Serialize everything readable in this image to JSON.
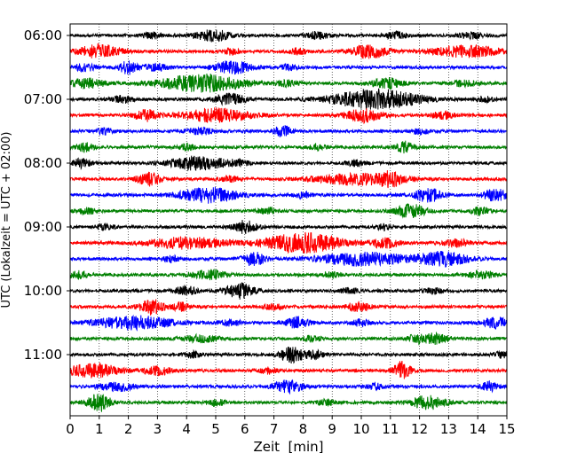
{
  "chart_data": {
    "type": "line",
    "title": "",
    "xlabel": "Zeit  [min]",
    "ylabel": "UTC (Lokalzeit = UTC + 02:00)",
    "xlim": [
      0,
      15
    ],
    "x_ticks": [
      "0",
      "1",
      "2",
      "3",
      "4",
      "5",
      "6",
      "7",
      "8",
      "9",
      "10",
      "11",
      "12",
      "13",
      "14",
      "15"
    ],
    "y_ticks": [
      "06:00",
      "07:00",
      "08:00",
      "09:00",
      "10:00",
      "11:00"
    ],
    "grid": "vertical-dotted",
    "trace_interval_minutes": 15,
    "trace_colors": [
      "#000000",
      "#ff0000",
      "#0000ff",
      "#008000"
    ],
    "series": [
      {
        "start": "06:00",
        "color": "#000000",
        "bursts": [
          [
            4.9,
            0.6,
            0.5
          ],
          [
            2.8,
            0.3,
            0.3
          ],
          [
            8.5,
            0.4,
            0.3
          ],
          [
            11.2,
            0.4,
            0.3
          ],
          [
            13.8,
            0.4,
            0.25
          ]
        ]
      },
      {
        "start": "06:15",
        "color": "#ff0000",
        "bursts": [
          [
            1.0,
            0.7,
            0.6
          ],
          [
            10.3,
            0.6,
            0.6
          ],
          [
            13.6,
            1.2,
            0.5
          ],
          [
            5.5,
            0.3,
            0.25
          ],
          [
            7.8,
            0.3,
            0.25
          ]
        ]
      },
      {
        "start": "06:30",
        "color": "#0000ff",
        "bursts": [
          [
            5.6,
            0.6,
            0.6
          ],
          [
            2.0,
            0.3,
            0.6
          ],
          [
            3.0,
            0.4,
            0.3
          ],
          [
            0.5,
            0.4,
            0.3
          ],
          [
            7.5,
            0.3,
            0.25
          ]
        ]
      },
      {
        "start": "06:45",
        "color": "#008000",
        "bursts": [
          [
            4.5,
            1.4,
            0.8
          ],
          [
            0.6,
            0.6,
            0.4
          ],
          [
            10.9,
            0.5,
            0.5
          ],
          [
            7.5,
            0.4,
            0.25
          ],
          [
            13.5,
            0.4,
            0.25
          ]
        ]
      },
      {
        "start": "07:00",
        "color": "#000000",
        "bursts": [
          [
            10.5,
            1.5,
            0.9
          ],
          [
            5.5,
            0.5,
            0.5
          ],
          [
            1.8,
            0.4,
            0.3
          ],
          [
            14.2,
            0.3,
            0.25
          ]
        ]
      },
      {
        "start": "07:15",
        "color": "#ff0000",
        "bursts": [
          [
            5.0,
            1.2,
            0.6
          ],
          [
            2.6,
            0.4,
            0.5
          ],
          [
            10.1,
            0.6,
            0.6
          ],
          [
            12.8,
            0.4,
            0.3
          ]
        ]
      },
      {
        "start": "07:30",
        "color": "#0000ff",
        "bursts": [
          [
            7.3,
            0.3,
            0.5
          ],
          [
            4.5,
            0.4,
            0.3
          ],
          [
            1.2,
            0.3,
            0.25
          ],
          [
            12.0,
            0.3,
            0.25
          ]
        ]
      },
      {
        "start": "07:45",
        "color": "#008000",
        "bursts": [
          [
            0.5,
            0.3,
            0.4
          ],
          [
            11.5,
            0.3,
            0.5
          ],
          [
            4.0,
            0.3,
            0.25
          ],
          [
            8.5,
            0.3,
            0.25
          ]
        ]
      },
      {
        "start": "08:00",
        "color": "#000000",
        "bursts": [
          [
            4.4,
            1.0,
            0.6
          ],
          [
            0.4,
            0.3,
            0.4
          ],
          [
            5.8,
            0.3,
            0.25
          ],
          [
            9.8,
            0.3,
            0.25
          ]
        ]
      },
      {
        "start": "08:15",
        "color": "#ff0000",
        "bursts": [
          [
            2.7,
            0.4,
            0.6
          ],
          [
            9.8,
            1.4,
            0.5
          ],
          [
            11.0,
            0.4,
            0.5
          ],
          [
            5.5,
            0.3,
            0.25
          ]
        ]
      },
      {
        "start": "08:30",
        "color": "#0000ff",
        "bursts": [
          [
            4.8,
            1.0,
            0.7
          ],
          [
            12.3,
            0.5,
            0.6
          ],
          [
            14.6,
            0.4,
            0.6
          ],
          [
            8.0,
            0.3,
            0.25
          ]
        ]
      },
      {
        "start": "08:45",
        "color": "#008000",
        "bursts": [
          [
            11.7,
            0.5,
            0.6
          ],
          [
            14.1,
            0.3,
            0.35
          ],
          [
            0.6,
            0.3,
            0.25
          ],
          [
            6.8,
            0.3,
            0.25
          ]
        ]
      },
      {
        "start": "09:00",
        "color": "#000000",
        "bursts": [
          [
            6.0,
            0.4,
            0.6
          ],
          [
            1.2,
            0.3,
            0.25
          ],
          [
            10.8,
            0.3,
            0.25
          ]
        ]
      },
      {
        "start": "09:15",
        "color": "#ff0000",
        "bursts": [
          [
            8.0,
            1.3,
            0.9
          ],
          [
            4.0,
            1.3,
            0.5
          ],
          [
            10.8,
            0.5,
            0.4
          ],
          [
            13.3,
            0.5,
            0.3
          ]
        ]
      },
      {
        "start": "09:30",
        "color": "#0000ff",
        "bursts": [
          [
            10.0,
            1.5,
            0.6
          ],
          [
            12.8,
            0.9,
            0.6
          ],
          [
            6.3,
            0.4,
            0.6
          ],
          [
            3.5,
            0.3,
            0.25
          ]
        ]
      },
      {
        "start": "09:45",
        "color": "#008000",
        "bursts": [
          [
            0.3,
            0.3,
            0.35
          ],
          [
            4.8,
            0.6,
            0.4
          ],
          [
            14.1,
            0.5,
            0.3
          ],
          [
            9.0,
            0.3,
            0.25
          ]
        ]
      },
      {
        "start": "10:00",
        "color": "#000000",
        "bursts": [
          [
            5.8,
            0.5,
            0.7
          ],
          [
            4.0,
            0.4,
            0.35
          ],
          [
            9.6,
            0.3,
            0.25
          ],
          [
            12.5,
            0.3,
            0.25
          ]
        ]
      },
      {
        "start": "10:15",
        "color": "#ff0000",
        "bursts": [
          [
            2.8,
            0.4,
            0.7
          ],
          [
            3.8,
            0.3,
            0.35
          ],
          [
            9.9,
            0.4,
            0.4
          ],
          [
            7.0,
            0.3,
            0.25
          ]
        ]
      },
      {
        "start": "10:30",
        "color": "#0000ff",
        "bursts": [
          [
            2.2,
            1.3,
            0.6
          ],
          [
            7.8,
            0.4,
            0.5
          ],
          [
            14.6,
            0.4,
            0.5
          ],
          [
            10.0,
            0.3,
            0.3
          ],
          [
            5.5,
            0.4,
            0.25
          ]
        ]
      },
      {
        "start": "10:45",
        "color": "#008000",
        "bursts": [
          [
            12.6,
            0.4,
            0.5
          ],
          [
            11.9,
            0.3,
            0.4
          ],
          [
            4.5,
            0.6,
            0.3
          ],
          [
            8.3,
            0.3,
            0.25
          ]
        ]
      },
      {
        "start": "11:00",
        "color": "#000000",
        "bursts": [
          [
            7.6,
            0.4,
            0.7
          ],
          [
            8.4,
            0.3,
            0.35
          ],
          [
            4.2,
            0.3,
            0.25
          ],
          [
            14.9,
            0.3,
            0.3
          ]
        ]
      },
      {
        "start": "11:15",
        "color": "#ff0000",
        "bursts": [
          [
            0.8,
            0.9,
            0.6
          ],
          [
            11.4,
            0.3,
            0.8
          ],
          [
            3.0,
            0.5,
            0.35
          ],
          [
            6.8,
            0.3,
            0.25
          ]
        ]
      },
      {
        "start": "11:30",
        "color": "#0000ff",
        "bursts": [
          [
            7.5,
            0.5,
            0.6
          ],
          [
            1.6,
            0.6,
            0.4
          ],
          [
            14.4,
            0.3,
            0.4
          ],
          [
            10.5,
            0.3,
            0.25
          ]
        ]
      },
      {
        "start": "11:45",
        "color": "#008000",
        "bursts": [
          [
            1.0,
            0.4,
            0.8
          ],
          [
            12.3,
            0.6,
            0.6
          ],
          [
            5.0,
            0.3,
            0.3
          ],
          [
            8.8,
            0.3,
            0.25
          ]
        ]
      }
    ]
  }
}
